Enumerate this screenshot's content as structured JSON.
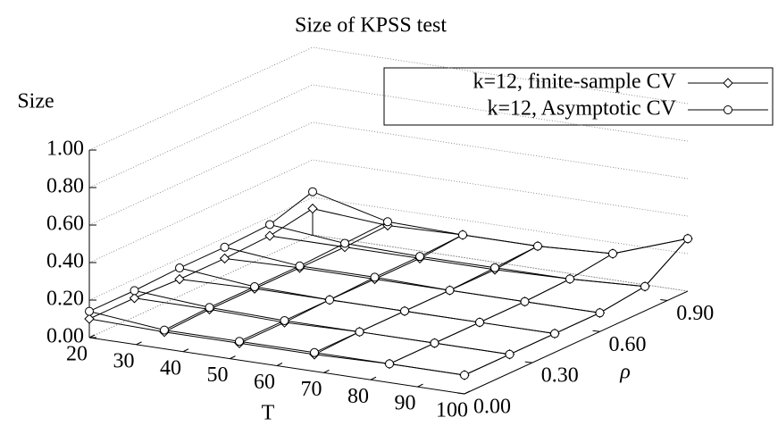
{
  "chart_data": {
    "type": "surface3d",
    "title": "Size of KPSS test",
    "xlabel": "T",
    "ylabel": "ρ",
    "zlabel": "Size",
    "x": [
      20,
      36,
      52,
      68,
      84,
      100
    ],
    "y": [
      0,
      0.2,
      0.4,
      0.6,
      0.8,
      0.99
    ],
    "xlim": [
      20,
      100
    ],
    "ylim": [
      0,
      0.99
    ],
    "zlim": [
      0,
      1
    ],
    "xticks": [
      20,
      30,
      40,
      50,
      60,
      70,
      80,
      90,
      100
    ],
    "yticks": [
      {
        "value": 0,
        "label": "0.00"
      },
      {
        "value": 0.3,
        "label": "0.30"
      },
      {
        "value": 0.6,
        "label": "0.60"
      },
      {
        "value": 0.9,
        "label": "0.90"
      }
    ],
    "zticks": [
      {
        "value": 0,
        "label": "0.00"
      },
      {
        "value": 0.2,
        "label": "0.20"
      },
      {
        "value": 0.4,
        "label": "0.40"
      },
      {
        "value": 0.6,
        "label": "0.60"
      },
      {
        "value": 0.8,
        "label": "0.80"
      },
      {
        "value": 1,
        "label": "1.00"
      }
    ],
    "grid": true,
    "legend": "top-right",
    "series": [
      {
        "name": "k=12, finite-sample CV",
        "color": "#000000",
        "marker": "diamond",
        "values": [
          [
            0.1,
            0.09,
            0.09,
            0.09,
            0.1,
            0.1
          ],
          [
            0.1,
            0.1,
            0.09,
            0.1,
            0.1,
            0.1
          ],
          [
            0.09,
            0.1,
            0.1,
            0.1,
            0.1,
            0.1
          ],
          [
            0.09,
            0.1,
            0.1,
            0.1,
            0.1,
            0.1
          ],
          [
            0.1,
            0.1,
            0.1,
            0.1,
            0.11,
            0.13
          ],
          [
            0.14,
            0.11,
            0.12,
            0.12,
            0.14,
            0.28
          ]
        ]
      },
      {
        "name": "k=12, Asymptotic CV",
        "color": "#000000",
        "marker": "circle",
        "values": [
          [
            0.14,
            0.1,
            0.1,
            0.1,
            0.1,
            0.1
          ],
          [
            0.14,
            0.11,
            0.1,
            0.1,
            0.1,
            0.1
          ],
          [
            0.15,
            0.11,
            0.1,
            0.1,
            0.1,
            0.1
          ],
          [
            0.15,
            0.11,
            0.11,
            0.1,
            0.1,
            0.1
          ],
          [
            0.16,
            0.12,
            0.11,
            0.11,
            0.11,
            0.13
          ],
          [
            0.23,
            0.13,
            0.12,
            0.12,
            0.14,
            0.28
          ]
        ]
      }
    ]
  }
}
